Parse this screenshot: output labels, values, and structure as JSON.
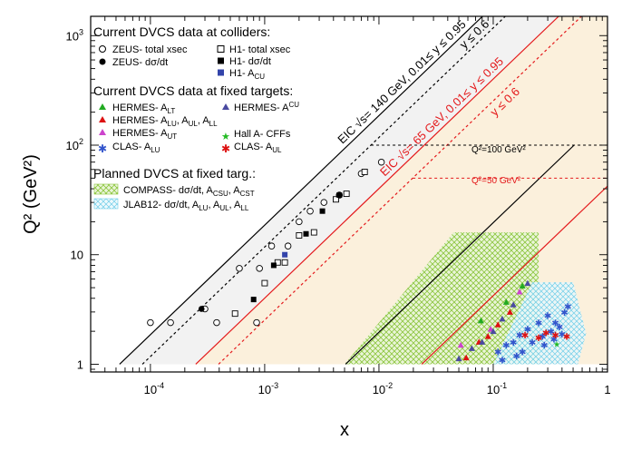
{
  "chart_data": {
    "type": "scatter",
    "xlabel": "x",
    "ylabel": "Q² (GeV²)",
    "xscale": "log",
    "yscale": "log",
    "xlim": [
      3e-05,
      1
    ],
    "ylim": [
      0.85,
      1500
    ],
    "xticks": [
      {
        "value": 0.0001,
        "base": "10",
        "exp": "-4"
      },
      {
        "value": 0.001,
        "base": "10",
        "exp": "-3"
      },
      {
        "value": 0.01,
        "base": "10",
        "exp": "-2"
      },
      {
        "value": 0.1,
        "base": "10",
        "exp": "-1"
      },
      {
        "value": 1,
        "label": "1"
      }
    ],
    "yticks": [
      {
        "value": 1,
        "label": "1"
      },
      {
        "value": 10,
        "label": "10"
      },
      {
        "value": 100,
        "base": "10",
        "exp": "2"
      },
      {
        "value": 1000,
        "base": "10",
        "exp": "3"
      }
    ],
    "legend": {
      "colliders_header": "Current DVCS data at colliders:",
      "zeus_xsec": "ZEUS- total xsec",
      "zeus_dsdt": "ZEUS- dσ/dt",
      "h1_xsec": "H1- total xsec",
      "h1_dsdt": "H1- dσ/dt",
      "h1_acu": "H1- A",
      "h1_acu_sub": "CU",
      "fixed_header": "Current DVCS data at fixed targets:",
      "hermes_alt": "HERMES- A",
      "hermes_alt_sub": "LT",
      "hermes_acu": "HERMES- A",
      "hermes_acu_sup": "CU",
      "hermes_alu": "HERMES- A",
      "hermes_alu_sub1": "LU",
      "hermes_alu_mid1": ", A",
      "hermes_alu_sub2": "UL",
      "hermes_alu_mid2": ", A",
      "hermes_alu_sub3": "LL",
      "hermes_aut": "HERMES- A",
      "hermes_aut_sub": "UT",
      "halla": "Hall A- CFFs",
      "clas_alu": "CLAS- A",
      "clas_alu_sub": "LU",
      "clas_aul": "CLAS- A",
      "clas_aul_sub": "UL",
      "planned_header": "Planned DVCS at fixed targ.:",
      "compass": "COMPASS- dσ/dt, A",
      "compass_sub1": "CSU",
      "compass_mid": ", A",
      "compass_sub2": "CST",
      "jlab": "JLAB12- dσ/dt, A",
      "jlab_sub1": "LU",
      "jlab_mid1": ", A",
      "jlab_sub2": "UL",
      "jlab_mid2": ", A",
      "jlab_sub3": "LL"
    },
    "annotations": {
      "eic140_pre": "EIC √s= 140 GeV, 0.01≤ y ≤ 0.95",
      "eic140_y": "y ≤ 0.6",
      "eic65_pre": "EIC √s= 65 GeV, 0.01≤ y ≤ 0.95",
      "eic65_y": "y ≤ 0.6",
      "q100": "Q²=100 GeV²",
      "q50": "Q²=50 GeV²"
    },
    "colors": {
      "eic140": "#000000",
      "eic65": "#e41a1c",
      "compass": "#8dc63f",
      "jlab": "#6fcde8",
      "eic140_band": "#f2f2f2",
      "eic65_band": "#fbf0dc",
      "hermes_green": "#22aa22",
      "hermes_red": "#dd1111",
      "hermes_magenta": "#cc44cc",
      "hermes_blue": "#4a4aa0",
      "clas_blue": "#3355cc",
      "clas_red": "#dd1111",
      "halla_green": "#22bb22",
      "h1_blue": "#3344aa"
    },
    "series": [
      {
        "name": "ZEUS- total xsec",
        "marker": "open-circle",
        "x": [
          0.0001,
          0.00015,
          0.0003,
          0.00038,
          0.0006,
          0.0009,
          0.00115,
          0.0016,
          0.002,
          0.0025,
          0.0033,
          0.0045,
          0.007,
          0.0105,
          0.00085
        ],
        "y": [
          2.4,
          2.4,
          3.2,
          2.4,
          7.5,
          7.5,
          12,
          12,
          20,
          25,
          30,
          35,
          55,
          70,
          2.4
        ]
      },
      {
        "name": "ZEUS- dσ/dt",
        "marker": "filled-circle",
        "x": [
          0.00028
        ],
        "y": [
          3.2
        ]
      },
      {
        "name": "H1- total xsec",
        "marker": "open-square",
        "x": [
          0.00055,
          0.001,
          0.0013,
          0.0015,
          0.002,
          0.0027,
          0.0042,
          0.0052,
          0.0075
        ],
        "y": [
          2.9,
          5.5,
          8.5,
          8.5,
          15,
          16,
          32,
          36,
          57
        ]
      },
      {
        "name": "H1- dσ/dt",
        "marker": "filled-square",
        "x": [
          0.0008,
          0.0012,
          0.0023,
          0.0032,
          0.0045
        ],
        "y": [
          3.9,
          8.0,
          15.5,
          25,
          35
        ]
      },
      {
        "name": "H1- A",
        "marker": "filled-square-blue",
        "x": [
          0.0015
        ],
        "y": [
          10
        ]
      },
      {
        "name": "HERMES- A",
        "marker": "triangle-green",
        "x": [
          0.078,
          0.13,
          0.18
        ],
        "y": [
          2.5,
          3.7,
          5.2
        ]
      },
      {
        "name": "HERMES- A",
        "marker": "triangle-red",
        "x": [
          0.058,
          0.075,
          0.09,
          0.11,
          0.14
        ],
        "y": [
          1.15,
          1.6,
          1.8,
          2.3,
          3.0
        ]
      },
      {
        "name": "HERMES- A",
        "marker": "triangle-magenta",
        "x": [
          0.052,
          0.095,
          0.17
        ],
        "y": [
          1.5,
          2.1,
          4.6
        ]
      },
      {
        "name": "HERMES- A",
        "marker": "triangle-blue",
        "x": [
          0.05,
          0.065,
          0.08,
          0.1,
          0.12,
          0.15,
          0.2
        ],
        "y": [
          1.13,
          1.4,
          1.6,
          2.0,
          2.6,
          3.5,
          5.5
        ]
      },
      {
        "name": "Hall A- CFFs",
        "marker": "star-green",
        "x": [
          0.36
        ],
        "y": [
          1.55
        ]
      },
      {
        "name": "CLAS- A",
        "marker": "star-blue",
        "x": [
          0.11,
          0.13,
          0.15,
          0.17,
          0.2,
          0.25,
          0.3,
          0.35,
          0.42,
          0.45,
          0.18,
          0.22,
          0.27,
          0.32,
          0.38,
          0.12,
          0.16,
          0.28,
          0.34,
          0.4
        ],
        "y": [
          1.3,
          1.5,
          1.6,
          1.85,
          2.1,
          2.4,
          2.8,
          2.4,
          3.0,
          3.4,
          1.3,
          1.6,
          1.8,
          2.0,
          2.2,
          1.1,
          1.2,
          1.5,
          1.7,
          1.9
        ]
      },
      {
        "name": "CLAS- A",
        "marker": "star-red",
        "x": [
          0.19,
          0.25,
          0.29,
          0.35,
          0.44
        ],
        "y": [
          1.85,
          1.75,
          1.95,
          1.85,
          1.8
        ]
      }
    ]
  }
}
